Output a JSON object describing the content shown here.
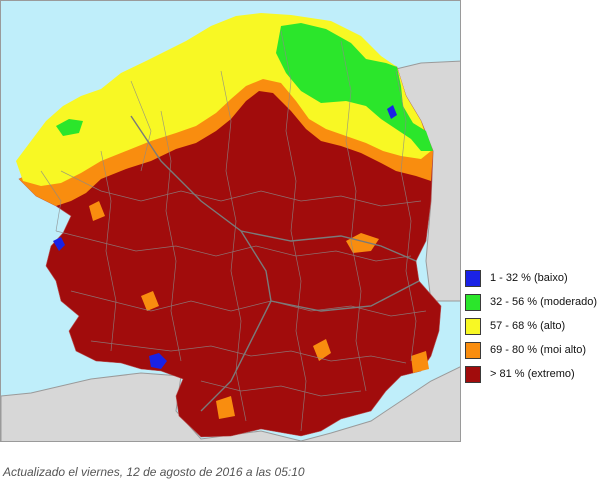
{
  "map": {
    "colors": {
      "sea": "#bfeefa",
      "outside_land": "#d7d7d7",
      "baixo": "#1a22e6",
      "moderado": "#2be62b",
      "alto": "#f8f824",
      "moi_alto": "#f98d0f",
      "extremo": "#a10c0c",
      "borders": "#8a8a8a"
    }
  },
  "legend": {
    "items": [
      {
        "label": "1 - 32 % (baixo)",
        "color": "#1a22e6"
      },
      {
        "label": "32 - 56 % (moderado)",
        "color": "#2be62b"
      },
      {
        "label": "57 - 68 % (alto)",
        "color": "#f8f824"
      },
      {
        "label": "69 - 80 % (moi alto)",
        "color": "#f98d0f"
      },
      {
        "label": "> 81 % (extremo)",
        "color": "#a10c0c"
      }
    ]
  },
  "caption": "Actualizado el viernes, 12 de agosto de 2016 a las 05:10"
}
